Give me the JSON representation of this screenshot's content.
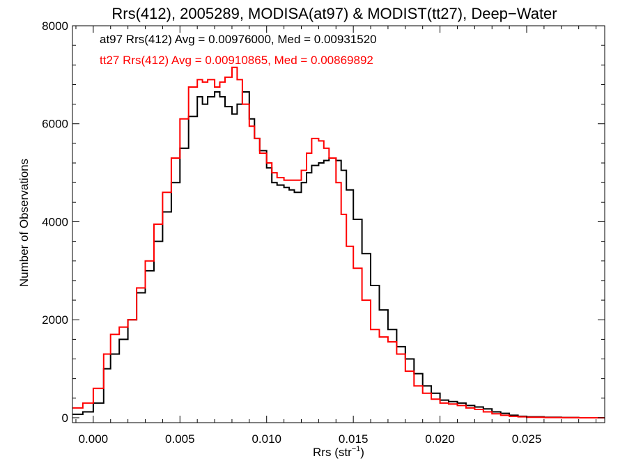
{
  "chart_data": {
    "type": "line",
    "title": "Rrs(412), 2005289, MODISA(at97) & MODIST(tt27), Deep−Water",
    "xlabel_main": "Rrs (str",
    "xlabel_sup": "−1",
    "xlabel_close": ")",
    "ylabel": "Number of Observations",
    "xlim": [
      -0.0012,
      0.0295
    ],
    "ylim": [
      -100,
      8000
    ],
    "x_ticks": [
      0.0,
      0.005,
      0.01,
      0.015,
      0.02,
      0.025
    ],
    "x_tick_labels": [
      "0.000",
      "0.005",
      "0.010",
      "0.015",
      "0.020",
      "0.025"
    ],
    "y_ticks": [
      0,
      2000,
      4000,
      6000,
      8000
    ],
    "y_tick_labels": [
      "0",
      "2000",
      "4000",
      "6000",
      "8000"
    ],
    "annotations": [
      {
        "text": "at97 Rrs(412) Avg = 0.00976000, Med = 0.00931520",
        "color": "#000000"
      },
      {
        "text": "tt27 Rrs(412) Avg = 0.00910865, Med = 0.00869892",
        "color": "#ff0000"
      }
    ],
    "grid": false,
    "series": [
      {
        "color": "#000000",
        "x": [
          -0.0012,
          -0.0006,
          0.0,
          0.0006,
          0.001,
          0.0015,
          0.002,
          0.0025,
          0.003,
          0.0035,
          0.004,
          0.0045,
          0.005,
          0.0055,
          0.006,
          0.0063,
          0.0066,
          0.007,
          0.0073,
          0.0076,
          0.008,
          0.0083,
          0.0086,
          0.009,
          0.0093,
          0.0096,
          0.01,
          0.0103,
          0.0106,
          0.011,
          0.0113,
          0.0116,
          0.012,
          0.0123,
          0.0126,
          0.013,
          0.0133,
          0.0136,
          0.014,
          0.0143,
          0.0146,
          0.015,
          0.0155,
          0.016,
          0.0165,
          0.017,
          0.0175,
          0.018,
          0.0185,
          0.019,
          0.0195,
          0.02,
          0.0205,
          0.021,
          0.0215,
          0.022,
          0.0225,
          0.023,
          0.0235,
          0.024,
          0.0245,
          0.025,
          0.026,
          0.027,
          0.028,
          0.0295
        ],
        "y": [
          70,
          120,
          300,
          1000,
          1300,
          1600,
          2000,
          2550,
          3000,
          3600,
          4200,
          4800,
          5500,
          6150,
          6550,
          6400,
          6550,
          6650,
          6550,
          6350,
          6200,
          6400,
          6650,
          6100,
          5700,
          5450,
          5100,
          4800,
          4750,
          4700,
          4650,
          4600,
          4800,
          5000,
          5150,
          5200,
          5250,
          5300,
          5250,
          5050,
          4650,
          4050,
          3350,
          2700,
          2200,
          1800,
          1450,
          1200,
          900,
          650,
          500,
          360,
          330,
          300,
          250,
          220,
          180,
          120,
          90,
          50,
          30,
          20,
          10,
          5,
          0,
          0
        ]
      },
      {
        "color": "#ff0000",
        "x": [
          -0.0012,
          -0.0006,
          0.0,
          0.0006,
          0.001,
          0.0015,
          0.002,
          0.0025,
          0.003,
          0.0035,
          0.004,
          0.0045,
          0.005,
          0.0055,
          0.006,
          0.0063,
          0.0066,
          0.007,
          0.0073,
          0.0076,
          0.008,
          0.0083,
          0.0086,
          0.009,
          0.0093,
          0.0096,
          0.01,
          0.0103,
          0.0106,
          0.011,
          0.0113,
          0.0116,
          0.012,
          0.0123,
          0.0126,
          0.013,
          0.0133,
          0.0136,
          0.014,
          0.0143,
          0.0146,
          0.015,
          0.0155,
          0.016,
          0.0165,
          0.017,
          0.0175,
          0.018,
          0.0185,
          0.019,
          0.0195,
          0.02,
          0.0205,
          0.021,
          0.0215,
          0.022,
          0.0225,
          0.023,
          0.0235,
          0.024,
          0.0245,
          0.025,
          0.026,
          0.027,
          0.028,
          0.0295
        ],
        "y": [
          200,
          300,
          600,
          1300,
          1700,
          1850,
          2000,
          2650,
          3200,
          3950,
          4600,
          5300,
          6100,
          6750,
          6900,
          6850,
          6900,
          6750,
          6850,
          6950,
          7150,
          6900,
          6400,
          5950,
          5700,
          5400,
          5200,
          5000,
          4900,
          4850,
          4850,
          4850,
          5050,
          5400,
          5700,
          5650,
          5500,
          5300,
          4800,
          4150,
          3500,
          3050,
          2400,
          1800,
          1650,
          1550,
          1300,
          950,
          650,
          500,
          380,
          300,
          280,
          250,
          200,
          170,
          120,
          80,
          50,
          30,
          20,
          10,
          5,
          2,
          0,
          0
        ]
      }
    ]
  }
}
